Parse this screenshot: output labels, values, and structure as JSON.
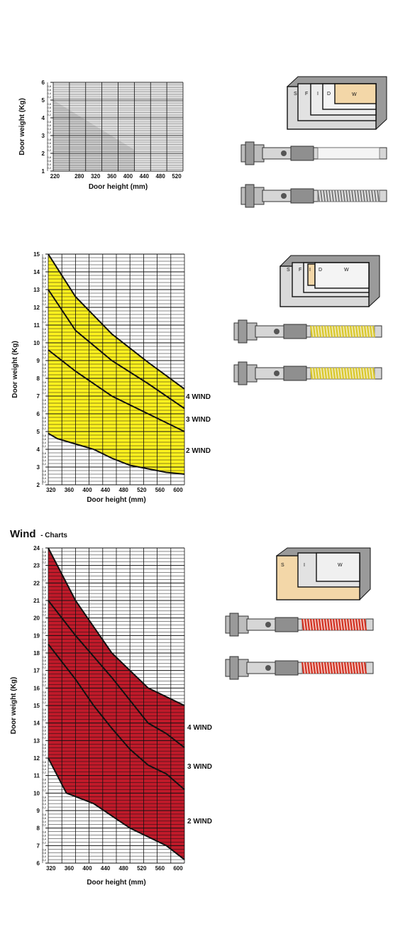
{
  "section_heading": {
    "main": "Wind",
    "sub": "- Charts"
  },
  "diagram_labels": {
    "s": "S",
    "f": "F",
    "i": "I",
    "d": "D",
    "w": "W"
  },
  "colors": {
    "grid_line": "#111111",
    "chart1_fill": "#cfcfcf",
    "chart2_fill": "#fff21e",
    "chart3_fill": "#c01a2a",
    "box_fill": "#d9d9d9",
    "box_highlight": "#f3d7a8",
    "spring_yellow": "#d8c626",
    "spring_red": "#d02a1a",
    "spring_white": "#f4f4f4"
  },
  "chart_data": [
    {
      "type": "area",
      "xlabel": "Door height (mm)",
      "ylabel": "Door weight (Kg)",
      "xlim": [
        200,
        520
      ],
      "ylim": [
        1,
        6
      ],
      "x_ticks": [
        "220",
        "280",
        "320",
        "360",
        "400",
        "440",
        "480",
        "520"
      ],
      "y_ticks": [
        "1",
        "2",
        "3",
        "4",
        "5",
        "6"
      ],
      "minor_y_labels": [
        "0,8",
        "0,6",
        "0,4",
        "0,2"
      ],
      "grid": true,
      "series": [
        {
          "x": [
            200,
            400
          ],
          "upper": [
            5.0,
            2.2
          ],
          "lower": [
            1.0,
            1.0
          ]
        }
      ],
      "series_labels": []
    },
    {
      "type": "area",
      "xlabel": "Door height (mm)",
      "ylabel": "Door weight (Kg)",
      "xlim": [
        300,
        600
      ],
      "ylim": [
        2,
        15
      ],
      "x_ticks": [
        "320",
        "360",
        "400",
        "440",
        "480",
        "520",
        "560",
        "600"
      ],
      "y_ticks": [
        "2",
        "3",
        "4",
        "5",
        "6",
        "7",
        "8",
        "9",
        "10",
        "11",
        "12",
        "13",
        "14",
        "15"
      ],
      "minor_y_labels": [
        "0,8",
        "0,6",
        "0,4",
        "0,2"
      ],
      "grid": true,
      "series": [
        {
          "name": "4 WIND",
          "x": [
            300,
            360,
            440,
            520,
            600
          ],
          "values": [
            15.0,
            12.6,
            10.5,
            8.9,
            7.4
          ]
        },
        {
          "name": "3 WIND",
          "x": [
            300,
            360,
            440,
            520,
            600
          ],
          "values": [
            13.0,
            10.7,
            9.0,
            7.7,
            6.3
          ]
        },
        {
          "x": [
            300,
            360,
            440,
            520,
            600
          ],
          "values": [
            9.6,
            8.4,
            7.0,
            6.0,
            5.0
          ]
        },
        {
          "name": "2 WIND",
          "x": [
            300,
            320,
            360,
            400,
            440,
            480,
            520,
            560,
            600
          ],
          "values": [
            4.9,
            4.6,
            4.3,
            4.0,
            3.5,
            3.1,
            2.9,
            2.7,
            2.6
          ]
        }
      ]
    },
    {
      "type": "area",
      "xlabel": "Door height (mm)",
      "ylabel": "Door weight (Kg)",
      "xlim": [
        300,
        600
      ],
      "ylim": [
        6,
        24
      ],
      "x_ticks": [
        "320",
        "360",
        "400",
        "440",
        "480",
        "520",
        "560",
        "600"
      ],
      "y_ticks": [
        "6",
        "7",
        "8",
        "9",
        "10",
        "11",
        "12",
        "13",
        "14",
        "15",
        "16",
        "17",
        "18",
        "19",
        "20",
        "21",
        "22",
        "23",
        "24"
      ],
      "minor_y_labels": [
        "0,8",
        "0,6",
        "0,4",
        "0,2"
      ],
      "grid": true,
      "series": [
        {
          "name": "4 WIND",
          "x": [
            300,
            360,
            440,
            520,
            600
          ],
          "values": [
            24.0,
            21.0,
            18.0,
            16.0,
            15.0
          ]
        },
        {
          "name": "3 WIND",
          "x": [
            300,
            360,
            440,
            480,
            520,
            560,
            600
          ],
          "values": [
            21.0,
            19.0,
            16.6,
            15.3,
            14.0,
            13.4,
            12.6
          ]
        },
        {
          "x": [
            300,
            360,
            400,
            440,
            480,
            520,
            560,
            600
          ],
          "values": [
            18.5,
            16.5,
            15.0,
            13.7,
            12.5,
            11.6,
            11.1,
            10.2
          ]
        },
        {
          "name": "2 WIND",
          "x": [
            300,
            340,
            400,
            440,
            480,
            520,
            560,
            600
          ],
          "values": [
            12.0,
            10.0,
            9.4,
            8.7,
            8.0,
            7.5,
            7.0,
            6.2
          ]
        }
      ]
    }
  ]
}
